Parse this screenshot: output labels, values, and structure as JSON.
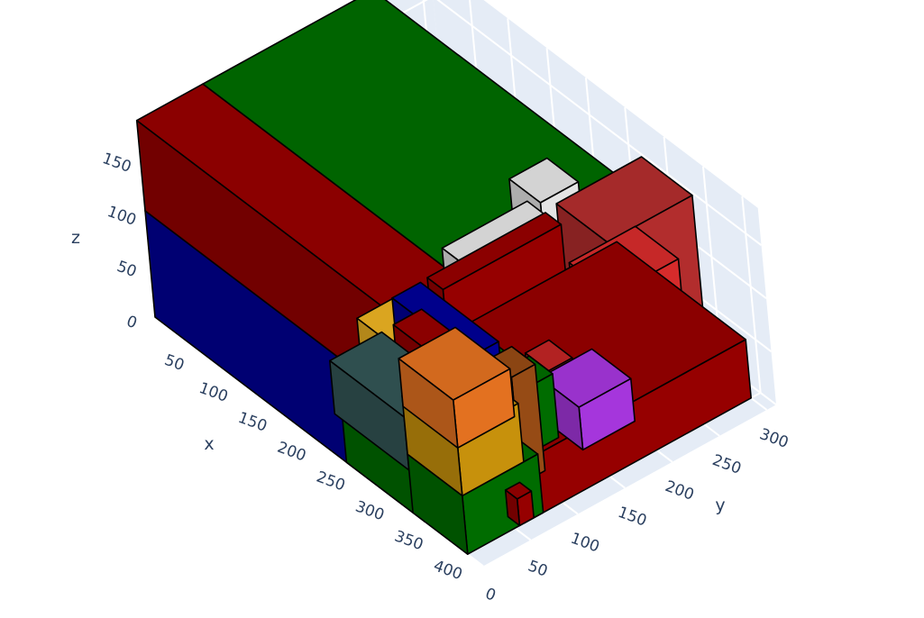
{
  "chart_data": {
    "type": "3d-box",
    "title": "",
    "scene_background": "#e5ecf6",
    "axes": {
      "x": {
        "title": "x",
        "range": [
          0,
          420
        ],
        "ticks": [
          "50",
          "100",
          "150",
          "200",
          "250",
          "300",
          "350",
          "400"
        ]
      },
      "y": {
        "title": "y",
        "range": [
          0,
          310
        ],
        "ticks": [
          "0",
          "50",
          "100",
          "150",
          "200",
          "250",
          "300"
        ]
      },
      "z": {
        "title": "z",
        "range": [
          0,
          185
        ],
        "ticks": [
          "0",
          "50",
          "100",
          "150"
        ]
      }
    },
    "boxes": [
      {
        "x": [
          235,
          400
        ],
        "y": [
          60,
          300
        ],
        "z": [
          0,
          55
        ],
        "color": "#8b0000"
      },
      {
        "x": [
          0,
          330
        ],
        "y": [
          0,
          70
        ],
        "z": [
          0,
          100
        ],
        "color": "#00008b"
      },
      {
        "x": [
          0,
          330
        ],
        "y": [
          0,
          70
        ],
        "z": [
          100,
          185
        ],
        "color": "#8b0000"
      },
      {
        "x": [
          0,
          330
        ],
        "y": [
          70,
          250
        ],
        "z": [
          105,
          185
        ],
        "color": "#006400"
      },
      {
        "x": [
          280,
          345
        ],
        "y": [
          210,
          300
        ],
        "z": [
          0,
          160
        ],
        "color": "#a52a2a"
      },
      {
        "x": [
          230,
          320
        ],
        "y": [
          230,
          255
        ],
        "z": [
          0,
          45
        ],
        "color": "#9932cc"
      },
      {
        "x": [
          250,
          330
        ],
        "y": [
          170,
          230
        ],
        "z": [
          0,
          70
        ],
        "color": "#228b22"
      },
      {
        "x": [
          290,
          345
        ],
        "y": [
          210,
          280
        ],
        "z": [
          0,
          110
        ],
        "color": "#c62828"
      },
      {
        "x": [
          225,
          265
        ],
        "y": [
          205,
          245
        ],
        "z": [
          110,
          155
        ],
        "color": "#d3d3d3"
      },
      {
        "x": [
          300,
          330
        ],
        "y": [
          150,
          175
        ],
        "z": [
          0,
          60
        ],
        "color": "#b22222"
      },
      {
        "x": [
          305,
          335
        ],
        "y": [
          125,
          150
        ],
        "z": [
          0,
          60
        ],
        "color": "#006400"
      },
      {
        "x": [
          330,
          360
        ],
        "y": [
          90,
          115
        ],
        "z": [
          0,
          100
        ],
        "color": "#8b4513"
      },
      {
        "x": [
          60,
          190
        ],
        "y": [
          185,
          215
        ],
        "z": [
          100,
          175
        ],
        "color": "#8b4513"
      },
      {
        "x": [
          45,
          200
        ],
        "y": [
          155,
          195
        ],
        "z": [
          100,
          170
        ],
        "color": "#b22222"
      },
      {
        "x": [
          40,
          200
        ],
        "y": [
          110,
          160
        ],
        "z": [
          100,
          150
        ],
        "color": "#a9a9a9"
      },
      {
        "x": [
          40,
          210
        ],
        "y": [
          70,
          110
        ],
        "z": [
          85,
          140
        ],
        "color": "#b8860b"
      },
      {
        "x": [
          40,
          230
        ],
        "y": [
          50,
          75
        ],
        "z": [
          70,
          130
        ],
        "color": "#00008b"
      },
      {
        "x": [
          240,
          270
        ],
        "y": [
          120,
          210
        ],
        "z": [
          45,
          140
        ],
        "color": "#d3d3d3"
      },
      {
        "x": [
          250,
          270
        ],
        "y": [
          95,
          220
        ],
        "z": [
          45,
          130
        ],
        "color": "#8b0000"
      },
      {
        "x": [
          245,
          345
        ],
        "y": [
          0,
          70
        ],
        "z": [
          0,
          55
        ],
        "color": "#006400"
      },
      {
        "x": [
          245,
          330
        ],
        "y": [
          70,
          100
        ],
        "z": [
          0,
          70
        ],
        "color": "#b22222"
      },
      {
        "x": [
          245,
          355
        ],
        "y": [
          60,
          90
        ],
        "z": [
          0,
          100
        ],
        "color": "#8b0000"
      },
      {
        "x": [
          235,
          330
        ],
        "y": [
          0,
          55
        ],
        "z": [
          40,
          90
        ],
        "color": "#2f4f4f"
      },
      {
        "x": [
          230,
          335
        ],
        "y": [
          35,
          90
        ],
        "z": [
          40,
          110
        ],
        "color": "#daa520"
      },
      {
        "x": [
          240,
          345
        ],
        "y": [
          40,
          110
        ],
        "z": [
          0,
          70
        ],
        "color": "#d2691e"
      },
      {
        "x": [
          250,
          345
        ],
        "y": [
          70,
          110
        ],
        "z": [
          0,
          90
        ],
        "color": "#006400"
      },
      {
        "x": [
          240,
          340
        ],
        "y": [
          65,
          95
        ],
        "z": [
          60,
          120
        ],
        "color": "#00008b"
      },
      {
        "x": [
          250,
          330
        ],
        "y": [
          50,
          115
        ],
        "z": [
          20,
          90
        ],
        "color": "#006400"
      },
      {
        "x": [
          320,
          335
        ],
        "y": [
          50,
          75
        ],
        "z": [
          0,
          50
        ],
        "color": "#006400"
      },
      {
        "x": [
          335,
          345
        ],
        "y": [
          75,
          90
        ],
        "z": [
          0,
          30
        ],
        "color": "#8b0000"
      },
      {
        "x": [
          330,
          400
        ],
        "y": [
          0,
          80
        ],
        "z": [
          0,
          55
        ],
        "color": "#006400"
      },
      {
        "x": [
          200,
          330
        ],
        "y": [
          150,
          195
        ],
        "z": [
          40,
          100
        ],
        "color": "#b22222"
      },
      {
        "x": [
          190,
          280
        ],
        "y": [
          235,
          275
        ],
        "z": [
          0,
          100
        ],
        "color": "#1c1c8c"
      },
      {
        "x": [
          190,
          290
        ],
        "y": [
          280,
          300
        ],
        "z": [
          0,
          100
        ],
        "color": "#8b0000"
      },
      {
        "x": [
          330,
          400
        ],
        "y": [
          0,
          65
        ],
        "z": [
          55,
          110
        ],
        "color": "#b8860b"
      },
      {
        "x": [
          330,
          400
        ],
        "y": [
          0,
          60
        ],
        "z": [
          100,
          145
        ],
        "color": "#d2691e"
      },
      {
        "x": [
          385,
          400
        ],
        "y": [
          55,
          70
        ],
        "z": [
          0,
          25
        ],
        "color": "#8b0000"
      },
      {
        "x": [
          310,
          360
        ],
        "y": [
          155,
          210
        ],
        "z": [
          0,
          40
        ],
        "color": "#9932cc"
      }
    ]
  }
}
